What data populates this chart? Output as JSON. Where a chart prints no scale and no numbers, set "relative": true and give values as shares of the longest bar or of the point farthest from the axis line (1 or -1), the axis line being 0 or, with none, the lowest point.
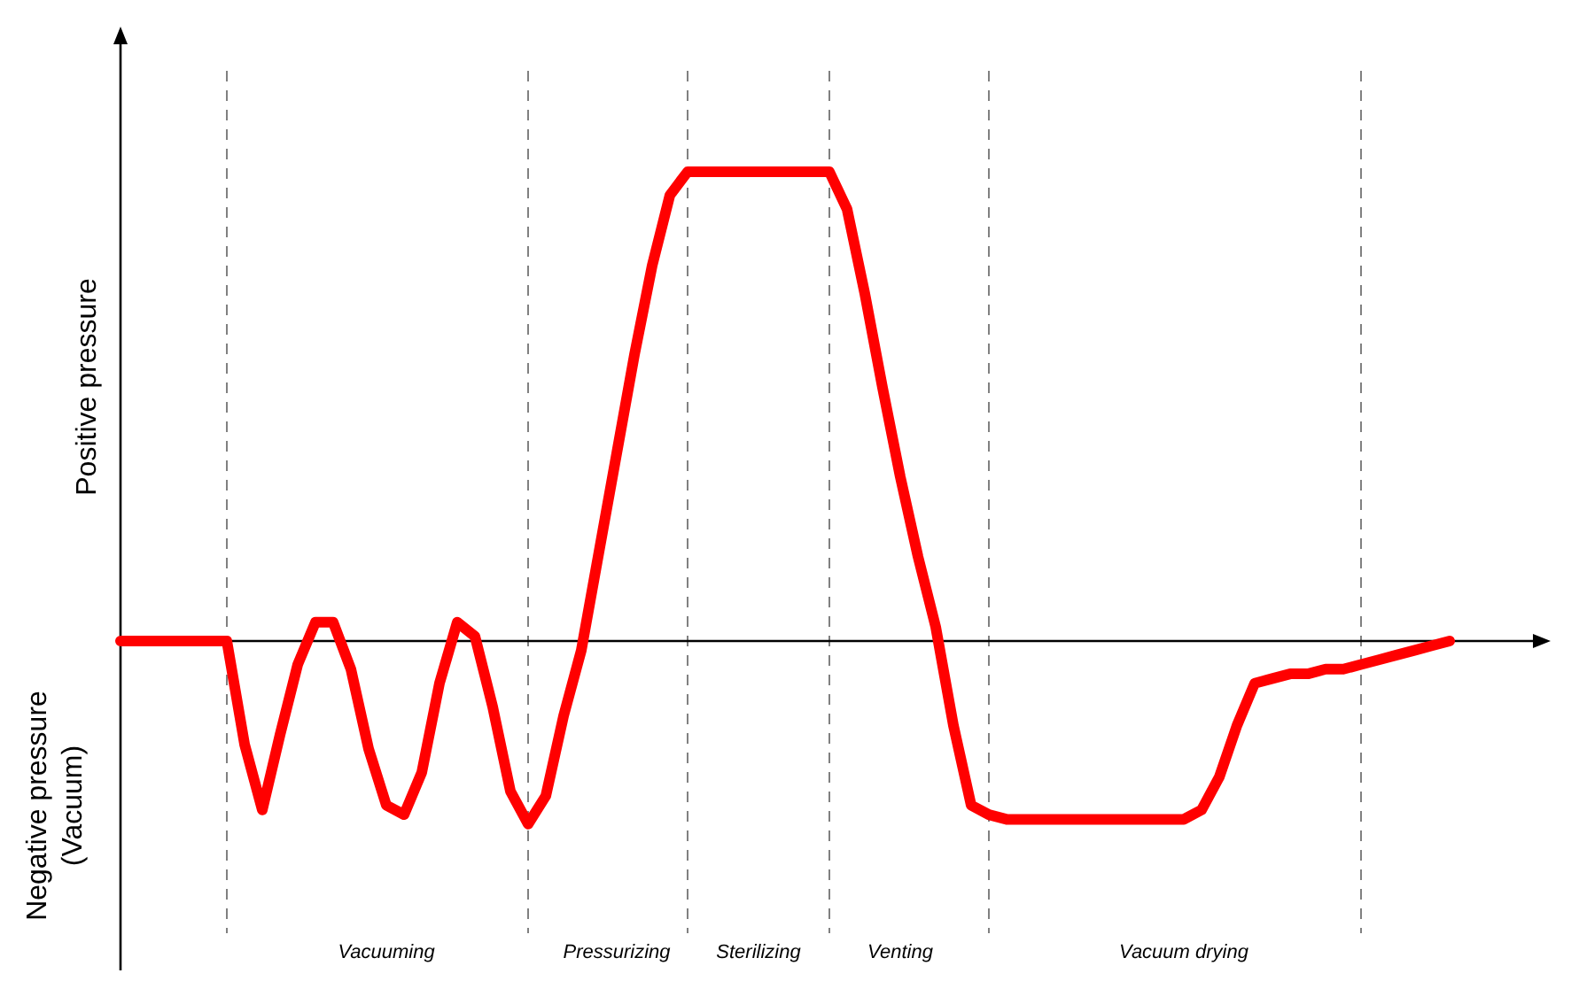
{
  "chart_data": {
    "type": "line",
    "relative": true,
    "tick_labels": "x",
    "marker": "none",
    "line_style": "solid",
    "ylabel": "Positive pressure",
    "categories": [
      null,
      null,
      null,
      null,
      null,
      null,
      null,
      null,
      null,
      null,
      null,
      null,
      null,
      null,
      null,
      "Vacuuming",
      null,
      null,
      null,
      null,
      null,
      null,
      null,
      null,
      null,
      null,
      null,
      null,
      "Pressurizing",
      null,
      null,
      null,
      null,
      null,
      null,
      null,
      "Sterilizing",
      null,
      null,
      null,
      null,
      null,
      null,
      null,
      "Venting",
      null,
      null,
      null,
      null,
      null,
      null,
      null,
      null,
      null,
      null,
      null,
      null,
      null,
      null,
      null,
      "Vacuum drying",
      null,
      null,
      null,
      null,
      null,
      null,
      null,
      null,
      null,
      null,
      null,
      null,
      null,
      null,
      null
    ],
    "series": [
      {
        "color": "#ff0000",
        "values": [
          0,
          0,
          0,
          0,
          0,
          0,
          0,
          -0.22,
          -0.36,
          -0.2,
          -0.05,
          0.04,
          0.04,
          -0.06,
          -0.23,
          -0.35,
          -0.37,
          -0.28,
          -0.09,
          0.04,
          0.01,
          -0.14,
          -0.32,
          -0.39,
          -0.33,
          -0.16,
          -0.02,
          0.19,
          0.4,
          0.61,
          0.8,
          0.95,
          1,
          1,
          1,
          1,
          1,
          1,
          1,
          1,
          1,
          0.92,
          0.74,
          0.54,
          0.35,
          0.18,
          0.03,
          -0.18,
          -0.35,
          -0.37,
          -0.38,
          -0.38,
          -0.38,
          -0.38,
          -0.38,
          -0.38,
          -0.38,
          -0.38,
          -0.38,
          -0.38,
          -0.38,
          -0.36,
          -0.29,
          -0.18,
          -0.09,
          -0.08,
          -0.07,
          -0.07,
          -0.06,
          -0.06,
          -0.05,
          -0.04,
          -0.03,
          -0.02,
          -0.01,
          0
        ]
      }
    ],
    "annotations": [
      "Negative pressure\n(Vacuum)"
    ]
  }
}
